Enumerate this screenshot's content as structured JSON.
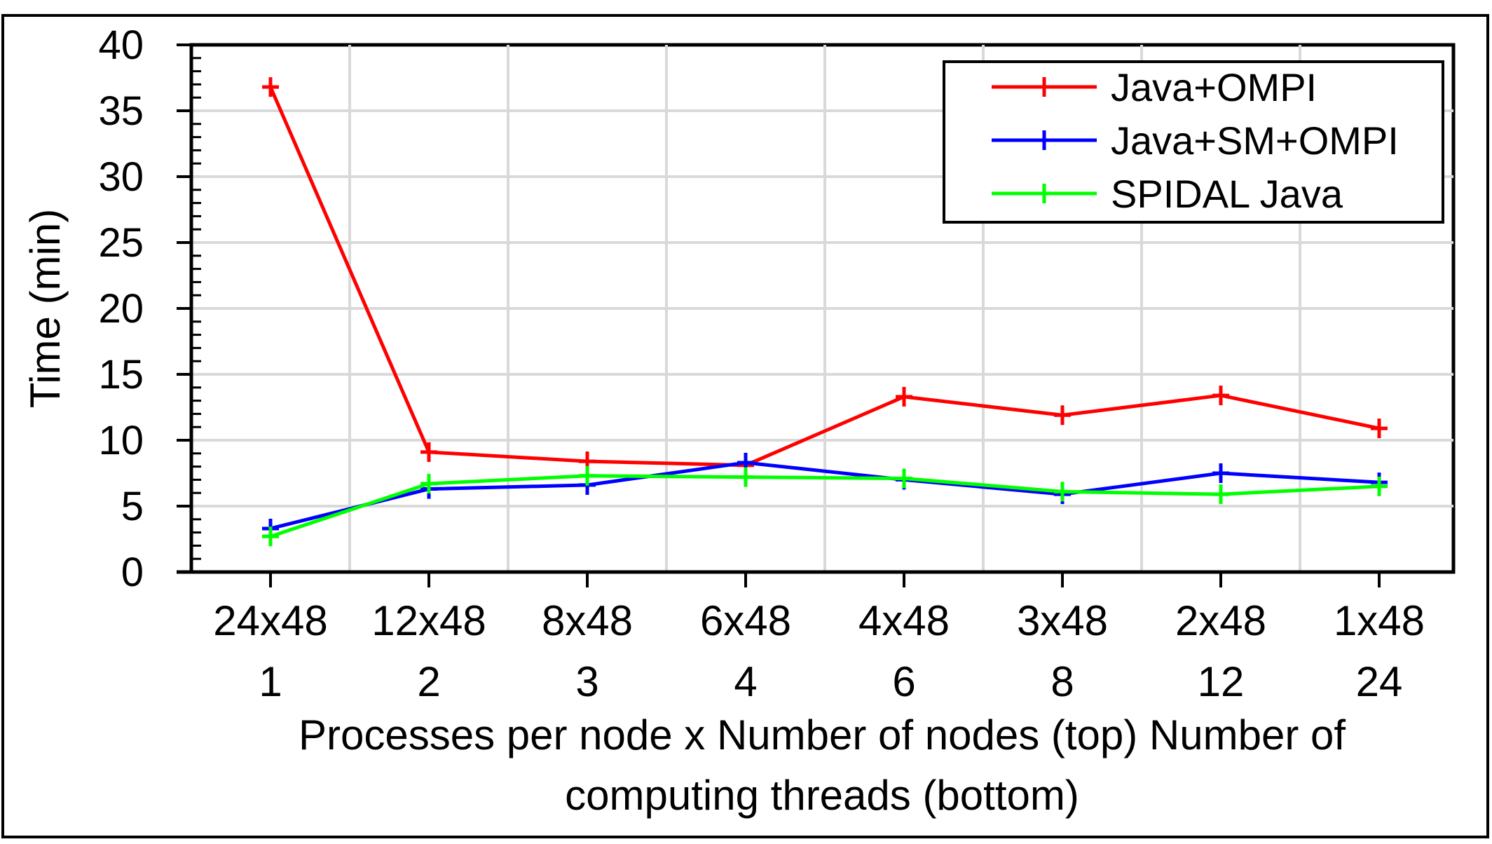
{
  "chart_data": {
    "type": "line",
    "title": "",
    "ylabel": "Time (min)",
    "xlabel": "Processes per node x Number of nodes (top) Number of computing threads (bottom)",
    "xlabel_lines": [
      "Processes per node x Number of nodes (top) Number of",
      "computing threads (bottom)"
    ],
    "categories": [
      "24x48",
      "12x48",
      "8x48",
      "6x48",
      "4x48",
      "3x48",
      "2x48",
      "1x48"
    ],
    "categories_bottom": [
      "1",
      "2",
      "3",
      "4",
      "6",
      "8",
      "12",
      "24"
    ],
    "ylim": [
      0,
      40
    ],
    "yticks": [
      "0",
      "5",
      "10",
      "15",
      "20",
      "25",
      "30",
      "35",
      "40"
    ],
    "grid": true,
    "legend_position": "top-right",
    "marker": "plus",
    "series": [
      {
        "name": "Java+OMPI",
        "color": "#ff0000",
        "values": [
          36.8,
          9.1,
          8.4,
          8.1,
          13.3,
          11.9,
          13.4,
          10.9
        ]
      },
      {
        "name": "Java+SM+OMPI",
        "color": "#0000ff",
        "values": [
          3.3,
          6.3,
          6.6,
          8.3,
          7.0,
          5.9,
          7.5,
          6.8
        ]
      },
      {
        "name": "SPIDAL Java",
        "color": "#00ff00",
        "values": [
          2.7,
          6.7,
          7.3,
          7.2,
          7.1,
          6.1,
          5.9,
          6.5
        ]
      }
    ]
  }
}
